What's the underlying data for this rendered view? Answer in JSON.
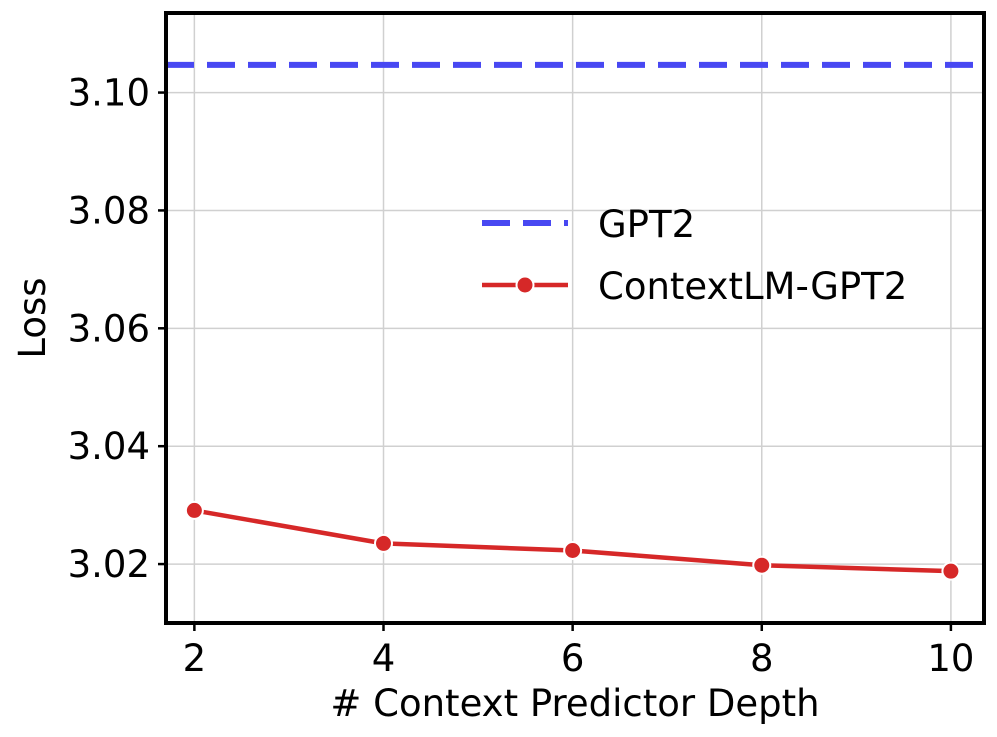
{
  "chart_data": {
    "type": "line",
    "xlabel": "# Context Predictor Depth",
    "ylabel": "Loss",
    "xlim": [
      1.7,
      10.35
    ],
    "ylim": [
      3.01,
      3.1135
    ],
    "xticks": [
      2,
      4,
      6,
      8,
      10
    ],
    "yticks": [
      3.02,
      3.04,
      3.06,
      3.08,
      3.1
    ],
    "xtick_labels": [
      "2",
      "4",
      "6",
      "8",
      "10"
    ],
    "ytick_labels": [
      "3.02",
      "3.04",
      "3.06",
      "3.08",
      "3.10"
    ],
    "grid": true,
    "legend_position": "center-right",
    "series": [
      {
        "name": "GPT2",
        "style": "dashed-horizontal",
        "color": "#4848f2",
        "y": 3.1047
      },
      {
        "name": "ContextLM-GPT2",
        "style": "line-with-markers",
        "color": "#d62828",
        "x": [
          2,
          4,
          6,
          8,
          10
        ],
        "values": [
          3.0291,
          3.0235,
          3.0223,
          3.0198,
          3.0188
        ]
      }
    ]
  }
}
